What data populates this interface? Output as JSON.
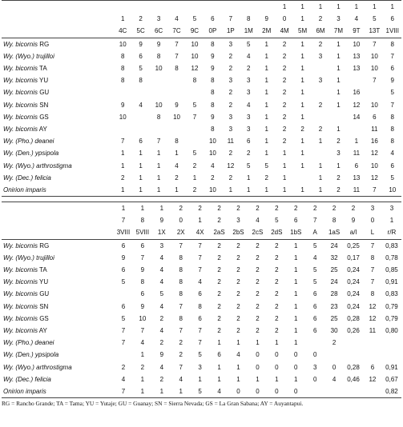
{
  "tables": [
    {
      "header": [
        [
          null,
          null,
          null,
          null,
          null,
          null,
          null,
          null,
          null,
          "1",
          "1",
          "1",
          "1",
          "1",
          "1",
          "1"
        ],
        [
          "1",
          "2",
          "3",
          "4",
          "5",
          "6",
          "7",
          "8",
          "9",
          "0",
          "1",
          "2",
          "3",
          "4",
          "5",
          "6"
        ],
        [
          "4C",
          "5C",
          "6C",
          "7C",
          "9C",
          "0P",
          "1P",
          "1M",
          "2M",
          "4M",
          "5M",
          "6M",
          "7M",
          "9T",
          "13T",
          "1VIII"
        ]
      ],
      "rows": [
        {
          "name": "Wy. bicornis",
          "pop": "RG",
          "cells": [
            10,
            9,
            9,
            7,
            10,
            8,
            3,
            5,
            1,
            2,
            1,
            2,
            1,
            10,
            7,
            8
          ]
        },
        {
          "name": "Wy. (Wyo.) trujilloi",
          "pop": null,
          "cells": [
            8,
            6,
            8,
            7,
            10,
            9,
            2,
            4,
            1,
            2,
            1,
            3,
            1,
            13,
            10,
            7
          ]
        },
        {
          "name": "Wy. bicornis",
          "pop": "TA",
          "cells": [
            8,
            5,
            10,
            8,
            12,
            9,
            2,
            2,
            1,
            2,
            1,
            null,
            1,
            13,
            10,
            6
          ]
        },
        {
          "name": "Wy. bicornis",
          "pop": "YU",
          "cells": [
            8,
            8,
            null,
            null,
            8,
            8,
            3,
            3,
            1,
            2,
            1,
            3,
            1,
            null,
            7,
            9
          ]
        },
        {
          "name": "Wy. bicornis",
          "pop": "GU",
          "cells": [
            null,
            null,
            null,
            null,
            null,
            8,
            2,
            3,
            1,
            2,
            1,
            null,
            1,
            16,
            null,
            5
          ]
        },
        {
          "name": "Wy. bicornis",
          "pop": "SN",
          "cells": [
            9,
            4,
            10,
            9,
            5,
            8,
            2,
            4,
            1,
            2,
            1,
            2,
            1,
            12,
            10,
            7
          ]
        },
        {
          "name": "Wy. bicornis",
          "pop": "GS",
          "cells": [
            10,
            null,
            8,
            10,
            7,
            9,
            3,
            3,
            1,
            2,
            1,
            null,
            null,
            14,
            6,
            8
          ]
        },
        {
          "name": "Wy. bicornis",
          "pop": "AY",
          "cells": [
            null,
            null,
            null,
            null,
            null,
            8,
            3,
            3,
            1,
            2,
            2,
            2,
            1,
            null,
            11,
            8
          ]
        },
        {
          "name": "Wy. (Pho.) deanei",
          "pop": null,
          "cells": [
            7,
            6,
            7,
            8,
            null,
            10,
            11,
            6,
            1,
            2,
            1,
            1,
            2,
            1,
            16,
            8
          ]
        },
        {
          "name": "Wy. (Den.) ypsipola",
          "pop": null,
          "cells": [
            1,
            1,
            1,
            1,
            5,
            10,
            2,
            2,
            1,
            1,
            1,
            null,
            3,
            11,
            12,
            4
          ]
        },
        {
          "name": "Wy. (Wyo.) arthrostigma",
          "pop": null,
          "cells": [
            1,
            1,
            1,
            4,
            2,
            4,
            12,
            5,
            5,
            1,
            1,
            1,
            1,
            6,
            10,
            6
          ]
        },
        {
          "name": "Wy. (Dec.) felicia",
          "pop": null,
          "cells": [
            2,
            1,
            1,
            2,
            1,
            2,
            2,
            1,
            2,
            1,
            null,
            1,
            2,
            13,
            12,
            5
          ]
        },
        {
          "name": "Onirion imparis",
          "pop": null,
          "cells": [
            1,
            1,
            1,
            1,
            2,
            10,
            1,
            1,
            1,
            1,
            1,
            1,
            2,
            11,
            7,
            10
          ]
        }
      ]
    },
    {
      "header": [
        [
          "1",
          "1",
          "1",
          "2",
          "2",
          "2",
          "2",
          "2",
          "2",
          "2",
          "2",
          "2",
          "2",
          "3",
          "3"
        ],
        [
          "7",
          "8",
          "9",
          "0",
          "1",
          "2",
          "3",
          "4",
          "5",
          "6",
          "7",
          "8",
          "9",
          "0",
          "1"
        ],
        [
          "3VIII",
          "5VIII",
          "1X",
          "2X",
          "4X",
          "2aS",
          "2bS",
          "2cS",
          "2dS",
          "1bS",
          "A",
          "1aS",
          "a/l",
          "L",
          "r/R"
        ]
      ],
      "rows": [
        {
          "name": "Wy. bicornis",
          "pop": "RG",
          "cells": [
            6,
            6,
            3,
            7,
            7,
            2,
            2,
            2,
            2,
            1,
            5,
            24,
            "0,25",
            7,
            "0,83"
          ]
        },
        {
          "name": "Wy. (Wyo.) trujilloi",
          "pop": null,
          "cells": [
            9,
            7,
            4,
            8,
            7,
            2,
            2,
            2,
            2,
            1,
            4,
            32,
            "0,17",
            8,
            "0,78"
          ]
        },
        {
          "name": "Wy. bicornis",
          "pop": "TA",
          "cells": [
            6,
            9,
            4,
            8,
            7,
            2,
            2,
            2,
            2,
            1,
            5,
            25,
            "0,24",
            7,
            "0,85"
          ]
        },
        {
          "name": "Wy. bicornis",
          "pop": "YU",
          "cells": [
            5,
            8,
            4,
            8,
            4,
            2,
            2,
            2,
            2,
            1,
            5,
            24,
            "0,24",
            7,
            "0,91"
          ]
        },
        {
          "name": "Wy. bicornis",
          "pop": "GU",
          "cells": [
            null,
            6,
            5,
            8,
            6,
            2,
            2,
            2,
            2,
            1,
            6,
            28,
            "0,24",
            8,
            "0,83"
          ]
        },
        {
          "name": "Wy. bicornis",
          "pop": "SN",
          "cells": [
            6,
            9,
            4,
            7,
            8,
            2,
            2,
            2,
            2,
            1,
            6,
            23,
            "0,24",
            12,
            "0,79"
          ]
        },
        {
          "name": "Wy. bicornis",
          "pop": "GS",
          "cells": [
            5,
            10,
            2,
            8,
            6,
            2,
            2,
            2,
            2,
            1,
            6,
            25,
            "0,28",
            12,
            "0,79"
          ]
        },
        {
          "name": "Wy. bicornis",
          "pop": "AY",
          "cells": [
            7,
            7,
            4,
            7,
            7,
            2,
            2,
            2,
            2,
            1,
            6,
            30,
            "0,26",
            11,
            "0,80"
          ]
        },
        {
          "name": "Wy. (Pho.) deanei",
          "pop": null,
          "cells": [
            7,
            4,
            2,
            2,
            7,
            1,
            1,
            1,
            1,
            1,
            null,
            2,
            null,
            null,
            null
          ]
        },
        {
          "name": "Wy. (Den.) ypsipola",
          "pop": null,
          "cells": [
            null,
            1,
            9,
            2,
            5,
            6,
            4,
            0,
            0,
            0,
            0,
            null,
            null,
            null,
            null
          ]
        },
        {
          "name": "Wy. (Wyo.) arthrostigma",
          "pop": null,
          "cells": [
            2,
            2,
            4,
            7,
            3,
            1,
            1,
            0,
            0,
            0,
            3,
            0,
            "0,28",
            6,
            "0,91"
          ]
        },
        {
          "name": "Wy. (Dec.) felicia",
          "pop": null,
          "cells": [
            4,
            1,
            2,
            4,
            1,
            1,
            1,
            1,
            1,
            1,
            0,
            4,
            "0,46",
            12,
            "0,67"
          ]
        },
        {
          "name": "Onirion imparis",
          "pop": null,
          "cells": [
            7,
            1,
            1,
            1,
            5,
            4,
            0,
            0,
            0,
            0,
            null,
            null,
            null,
            null,
            "0,82"
          ]
        }
      ]
    }
  ],
  "footnote": "RG = Rancho Grande; TA = Tama; YU = Yutaje; GU = Guanay; SN = Sierra Nevada; GS = La Gran Sabana; AY = Auyantapui."
}
